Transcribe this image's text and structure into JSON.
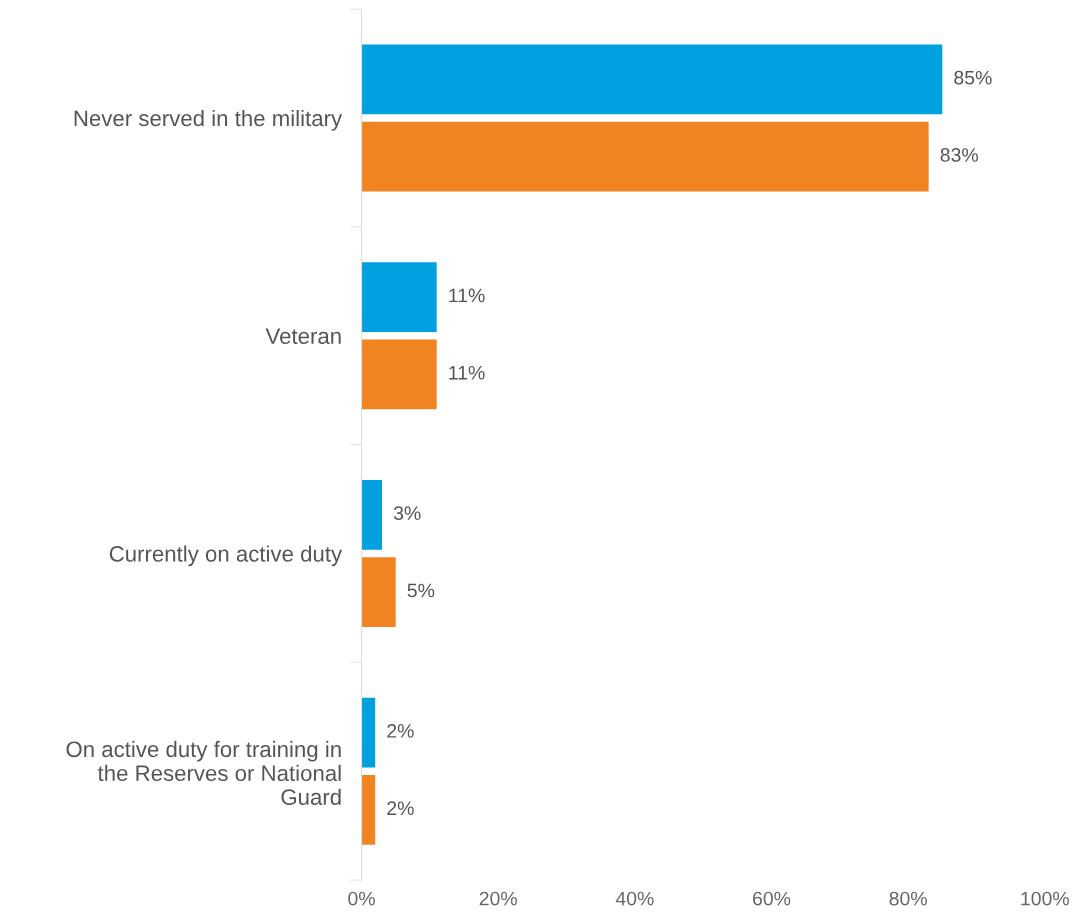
{
  "chart_data": {
    "type": "bar",
    "orientation": "horizontal",
    "categories": [
      "Never served in the military",
      "Veteran",
      "Currently on active duty",
      "On active duty for training in\nthe Reserves or National\nGuard"
    ],
    "series": [
      {
        "color": "#00a1de",
        "values": [
          85,
          11,
          3,
          2
        ],
        "value_labels": [
          "85%",
          "11%",
          "3%",
          "2%"
        ]
      },
      {
        "color": "#f08421",
        "values": [
          83,
          11,
          5,
          2
        ],
        "value_labels": [
          "83%",
          "11%",
          "5%",
          "2%"
        ]
      }
    ],
    "xlim": [
      0,
      100
    ],
    "xticks": [
      {
        "value": 0,
        "label": "0%"
      },
      {
        "value": 20,
        "label": "20%"
      },
      {
        "value": 40,
        "label": "40%"
      },
      {
        "value": 60,
        "label": "60%"
      },
      {
        "value": 80,
        "label": "80%"
      },
      {
        "value": 100,
        "label": "100%"
      }
    ],
    "grid": false,
    "legend": false
  }
}
